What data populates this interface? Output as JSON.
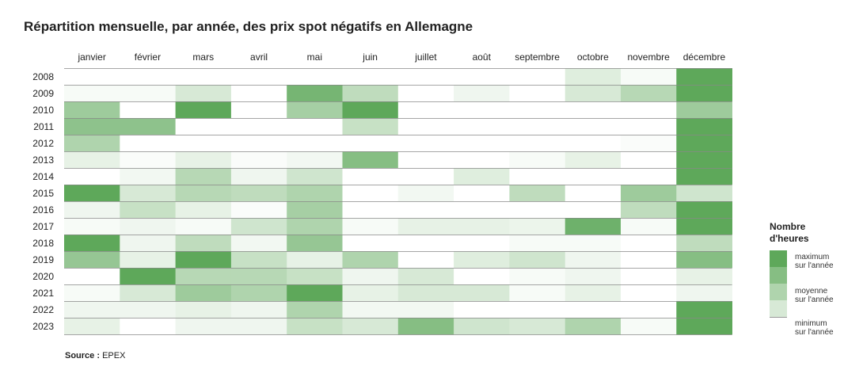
{
  "title": "Répartition mensuelle, par année, des prix spot négatifs en Allemagne",
  "source_label": "Source :",
  "source_value": "EPEX",
  "legend": {
    "title_line1": "Nombre",
    "title_line2": "d'heures",
    "max_line1": "maximum",
    "max_line2": "sur l'année",
    "mean_line1": "moyenne",
    "mean_line2": "sur l'année",
    "min_line1": "minimum",
    "min_line2": "sur l'année"
  },
  "colors": {
    "max": "#5ea85a",
    "min": "#ffffff",
    "grid": "#888888"
  },
  "chart_data": {
    "type": "heatmap",
    "title": "Répartition mensuelle, par année, des prix spot négatifs en Allemagne",
    "xlabel": "",
    "ylabel": "",
    "value_scale": "fraction of the annual maximum (0 = minimum, 1 = maximum)",
    "columns": [
      "janvier",
      "février",
      "mars",
      "avril",
      "mai",
      "juin",
      "juillet",
      "août",
      "septembre",
      "octobre",
      "novembre",
      "décembre"
    ],
    "rows": [
      "2008",
      "2009",
      "2010",
      "2011",
      "2012",
      "2013",
      "2014",
      "2015",
      "2016",
      "2017",
      "2018",
      "2019",
      "2020",
      "2021",
      "2022",
      "2023"
    ],
    "values": [
      [
        0,
        0,
        0,
        0,
        0,
        0,
        0,
        0,
        0,
        0.2,
        0.05,
        1
      ],
      [
        0.05,
        0.05,
        0.25,
        0,
        0.85,
        0.4,
        0,
        0.1,
        0,
        0.25,
        0.45,
        1
      ],
      [
        0.6,
        0,
        1,
        0,
        0.55,
        1,
        0,
        0,
        0,
        0,
        0,
        0.6
      ],
      [
        0.7,
        0.7,
        0,
        0,
        0,
        0.35,
        0,
        0,
        0,
        0,
        0,
        1
      ],
      [
        0.5,
        0,
        0,
        0,
        0,
        0,
        0,
        0,
        0,
        0,
        0.03,
        1
      ],
      [
        0.15,
        0.03,
        0.15,
        0.03,
        0.08,
        0.75,
        0,
        0,
        0.05,
        0.15,
        0,
        1
      ],
      [
        0,
        0.08,
        0.45,
        0.1,
        0.3,
        0,
        0,
        0.2,
        0,
        0,
        0,
        1
      ],
      [
        1,
        0.25,
        0.45,
        0.4,
        0.5,
        0,
        0.08,
        0,
        0.4,
        0,
        0.6,
        0.3
      ],
      [
        0.1,
        0.35,
        0.15,
        0.03,
        0.55,
        0,
        0,
        0,
        0,
        0,
        0.4,
        1
      ],
      [
        0.05,
        0.1,
        0.05,
        0.3,
        0.5,
        0.05,
        0.15,
        0.15,
        0.12,
        0.9,
        0.05,
        1
      ],
      [
        1,
        0.1,
        0.4,
        0.08,
        0.65,
        0,
        0,
        0,
        0.05,
        0.05,
        0,
        0.4
      ],
      [
        0.65,
        0.15,
        1,
        0.35,
        0.15,
        0.5,
        0,
        0.2,
        0.3,
        0.1,
        0,
        0.75
      ],
      [
        0,
        1,
        0.45,
        0.45,
        0.35,
        0.1,
        0.25,
        0,
        0.05,
        0.1,
        0,
        0.15
      ],
      [
        0.05,
        0.25,
        0.6,
        0.5,
        1,
        0.15,
        0.25,
        0.25,
        0.05,
        0.15,
        0,
        0.1
      ],
      [
        0.1,
        0.1,
        0.15,
        0.1,
        0.5,
        0.08,
        0.08,
        0,
        0,
        0,
        0,
        1
      ],
      [
        0.15,
        0,
        0.1,
        0.1,
        0.35,
        0.25,
        0.75,
        0.3,
        0.25,
        0.5,
        0.05,
        1
      ]
    ],
    "legend": [
      "maximum sur l'année",
      "moyenne sur l'année",
      "minimum sur l'année"
    ],
    "legend_position": "right"
  }
}
